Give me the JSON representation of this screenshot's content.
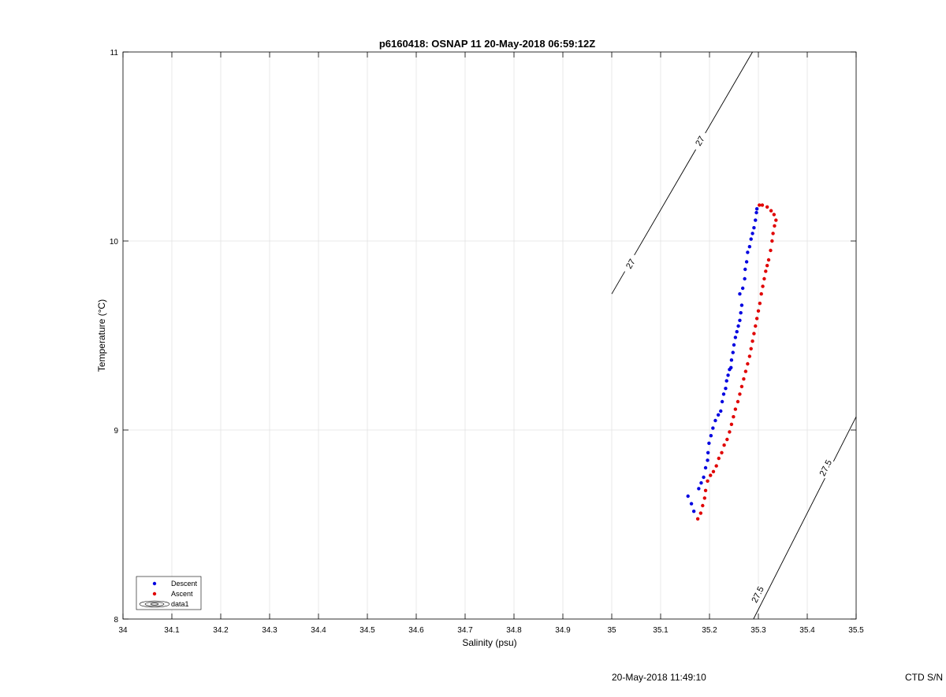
{
  "chart_data": {
    "type": "scatter",
    "title": "p6160418: OSNAP 11 20-May-2018 06:59:12Z",
    "xlabel": "Salinity (psu)",
    "ylabel": "Temperature (°C)",
    "xlim": [
      34,
      35.5
    ],
    "ylim": [
      8,
      11
    ],
    "xticks": [
      34,
      34.1,
      34.2,
      34.3,
      34.4,
      34.5,
      34.6,
      34.7,
      34.8,
      34.9,
      35,
      35.1,
      35.2,
      35.3,
      35.4,
      35.5
    ],
    "yticks": [
      8,
      9,
      10,
      11
    ],
    "grid": true,
    "legend_position": "bottom-left",
    "legend": [
      "Descent",
      "Ascent",
      "data1"
    ],
    "colors": {
      "descent": "#0000e0",
      "ascent": "#e00000",
      "contour": "#000000"
    },
    "series": [
      {
        "name": "Descent",
        "points": [
          [
            35.156,
            8.65
          ],
          [
            35.163,
            8.61
          ],
          [
            35.168,
            8.57
          ],
          [
            35.178,
            8.69
          ],
          [
            35.183,
            8.72
          ],
          [
            35.188,
            8.75
          ],
          [
            35.192,
            8.8
          ],
          [
            35.196,
            8.84
          ],
          [
            35.197,
            8.88
          ],
          [
            35.199,
            8.93
          ],
          [
            35.203,
            8.97
          ],
          [
            35.207,
            9.01
          ],
          [
            35.212,
            9.05
          ],
          [
            35.218,
            9.08
          ],
          [
            35.223,
            9.1
          ],
          [
            35.226,
            9.15
          ],
          [
            35.229,
            9.19
          ],
          [
            35.233,
            9.22
          ],
          [
            35.235,
            9.26
          ],
          [
            35.238,
            9.29
          ],
          [
            35.241,
            9.32
          ],
          [
            35.244,
            9.33
          ],
          [
            35.245,
            9.37
          ],
          [
            35.248,
            9.41
          ],
          [
            35.25,
            9.45
          ],
          [
            35.253,
            9.49
          ],
          [
            35.256,
            9.52
          ],
          [
            35.259,
            9.55
          ],
          [
            35.262,
            9.58
          ],
          [
            35.264,
            9.62
          ],
          [
            35.266,
            9.66
          ],
          [
            35.262,
            9.72
          ],
          [
            35.268,
            9.75
          ],
          [
            35.272,
            9.8
          ],
          [
            35.273,
            9.85
          ],
          [
            35.276,
            9.89
          ],
          [
            35.278,
            9.94
          ],
          [
            35.282,
            9.97
          ],
          [
            35.285,
            10.01
          ],
          [
            35.288,
            10.04
          ],
          [
            35.291,
            10.07
          ],
          [
            35.294,
            10.11
          ],
          [
            35.296,
            10.15
          ],
          [
            35.297,
            10.17
          ]
        ]
      },
      {
        "name": "Ascent",
        "points": [
          [
            35.176,
            8.53
          ],
          [
            35.182,
            8.56
          ],
          [
            35.186,
            8.6
          ],
          [
            35.19,
            8.64
          ],
          [
            35.192,
            8.68
          ],
          [
            35.196,
            8.73
          ],
          [
            35.202,
            8.76
          ],
          [
            35.208,
            8.78
          ],
          [
            35.214,
            8.81
          ],
          [
            35.219,
            8.85
          ],
          [
            35.225,
            8.88
          ],
          [
            35.23,
            8.92
          ],
          [
            35.236,
            8.95
          ],
          [
            35.241,
            8.99
          ],
          [
            35.245,
            9.03
          ],
          [
            35.249,
            9.07
          ],
          [
            35.253,
            9.11
          ],
          [
            35.258,
            9.15
          ],
          [
            35.262,
            9.19
          ],
          [
            35.266,
            9.23
          ],
          [
            35.27,
            9.27
          ],
          [
            35.274,
            9.31
          ],
          [
            35.278,
            9.35
          ],
          [
            35.282,
            9.39
          ],
          [
            35.285,
            9.43
          ],
          [
            35.288,
            9.47
          ],
          [
            35.291,
            9.51
          ],
          [
            35.294,
            9.55
          ],
          [
            35.297,
            9.59
          ],
          [
            35.3,
            9.63
          ],
          [
            35.303,
            9.67
          ],
          [
            35.306,
            9.72
          ],
          [
            35.309,
            9.76
          ],
          [
            35.312,
            9.8
          ],
          [
            35.315,
            9.84
          ],
          [
            35.318,
            9.87
          ],
          [
            35.321,
            9.9
          ],
          [
            35.325,
            9.95
          ],
          [
            35.328,
            10.0
          ],
          [
            35.33,
            10.04
          ],
          [
            35.333,
            10.08
          ],
          [
            35.336,
            10.11
          ],
          [
            35.332,
            10.14
          ],
          [
            35.326,
            10.16
          ],
          [
            35.318,
            10.18
          ],
          [
            35.308,
            10.19
          ],
          [
            35.302,
            10.19
          ]
        ]
      }
    ],
    "contours": [
      {
        "level": "27",
        "line": [
          [
            35.0,
            9.72
          ],
          [
            35.288,
            11.0
          ]
        ],
        "label_positions": [
          [
            35.038,
            9.88
          ],
          [
            35.18,
            10.53
          ]
        ]
      },
      {
        "level": "27.5",
        "line": [
          [
            35.29,
            8.0
          ],
          [
            35.5,
            9.07
          ]
        ],
        "label_positions": [
          [
            35.298,
            8.13
          ],
          [
            35.437,
            8.8
          ]
        ]
      }
    ]
  },
  "footer": {
    "timestamp": "20-May-2018 11:49:10",
    "ctd_sn": "CTD S/N"
  }
}
